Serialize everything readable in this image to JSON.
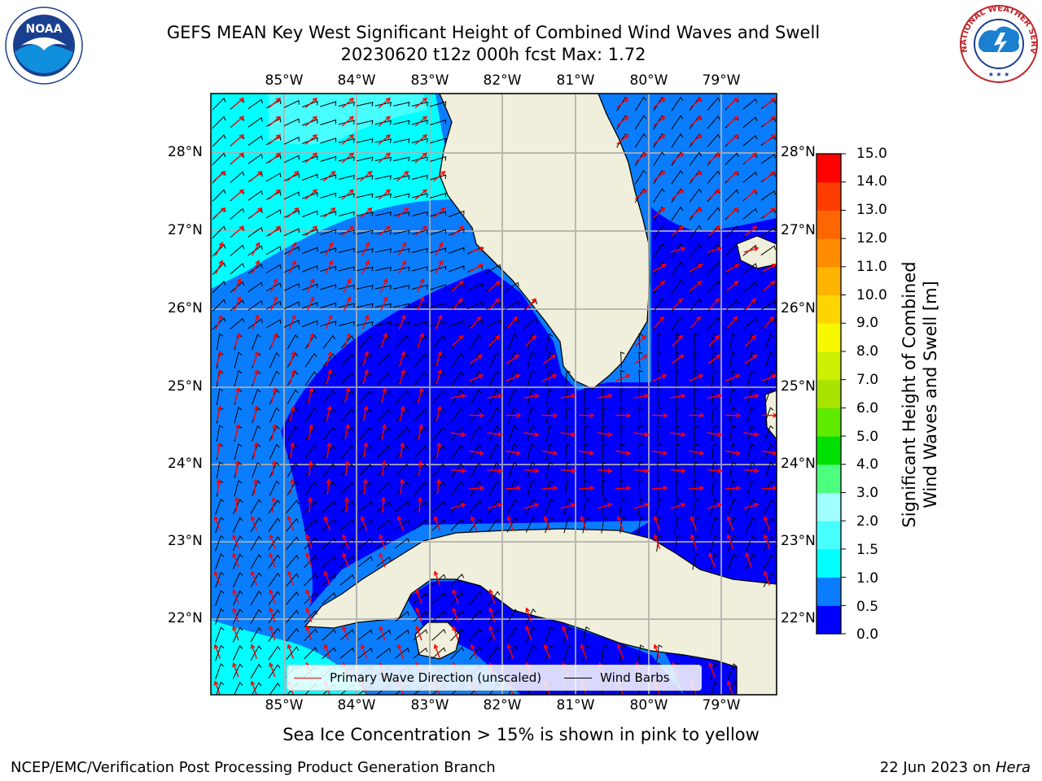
{
  "title": {
    "line1": "GEFS MEAN Key West Significant Height of Combined Wind Waves and Swell",
    "line2": "20230620 t12z 000h fcst   Max: 1.72"
  },
  "map": {
    "lon_ticks": [
      "85°W",
      "84°W",
      "83°W",
      "82°W",
      "81°W",
      "80°W",
      "79°W"
    ],
    "lat_ticks": [
      "28°N",
      "27°N",
      "26°N",
      "25°N",
      "24°N",
      "23°N",
      "22°N"
    ],
    "extent": {
      "lon": [
        -86.0,
        -78.25
      ],
      "lat": [
        21.1,
        28.75
      ]
    },
    "land_color": "#efefdb",
    "grid": true
  },
  "colorbar": {
    "title_line1": "Significant Height of Combined",
    "title_line2": "Wind Waves and Swell [m]",
    "ticks": [
      "0.0",
      "0.5",
      "1.0",
      "1.5",
      "2.0",
      "3.0",
      "4.0",
      "5.0",
      "6.0",
      "7.0",
      "8.0",
      "9.0",
      "10.0",
      "11.0",
      "12.0",
      "13.0",
      "14.0",
      "15.0"
    ],
    "colors": [
      "#0000ff",
      "#0a7dff",
      "#00ffff",
      "#48ffff",
      "#a0ffff",
      "#4dff7f",
      "#00e000",
      "#60ea00",
      "#a8e400",
      "#ccf000",
      "#f8f800",
      "#ffd500",
      "#ffb400",
      "#ff8c00",
      "#ff6500",
      "#ff3c00",
      "#ff0000"
    ]
  },
  "legend": {
    "wave_label": "Primary Wave Direction (unscaled)",
    "wind_label": "Wind Barbs",
    "wave_color": "#ff0000",
    "wind_color": "#000000"
  },
  "ice_note": "Sea Ice Concentration > 15% is shown in pink to yellow",
  "footer": {
    "left": "NCEP/EMC/Verification Post Processing Product Generation Branch",
    "date": "22 Jun 2023 on ",
    "host": "Hera"
  },
  "logos": {
    "noaa_text": "NOAA",
    "nws_text": "NATIONAL WEATHER SERVICE"
  }
}
